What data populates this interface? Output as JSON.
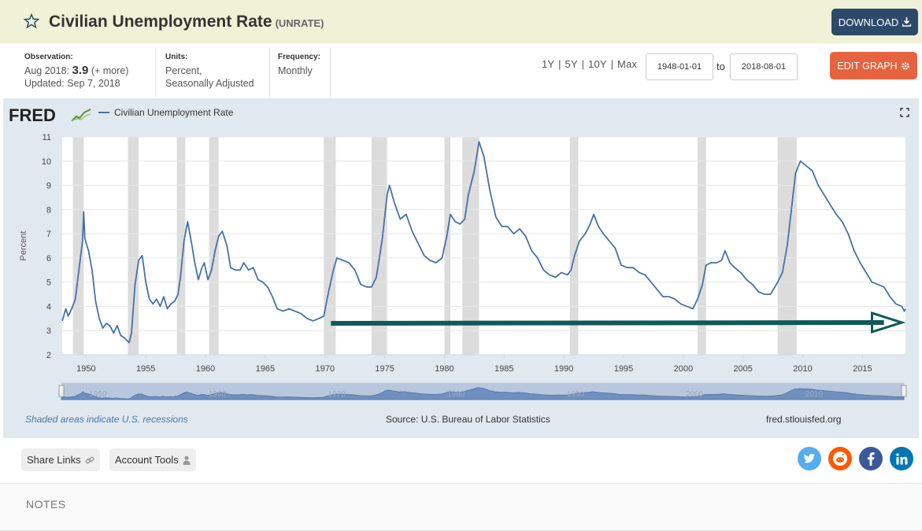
{
  "header": {
    "title": "Civilian Unemployment Rate",
    "series_id": "(UNRATE)",
    "download_label": "DOWNLOAD"
  },
  "meta": {
    "observation_label": "Observation:",
    "observation_date": "Aug 2018:",
    "observation_value": "3.9",
    "observation_more": "(+ more)",
    "updated": "Updated: Sep 7, 2018",
    "units_label": "Units:",
    "units_line1": "Percent,",
    "units_line2": "Seasonally Adjusted",
    "frequency_label": "Frequency:",
    "frequency_value": "Monthly"
  },
  "range_buttons": [
    "1Y",
    "5Y",
    "10Y",
    "Max"
  ],
  "date_range": {
    "start": "1948-01-01",
    "to_label": "to",
    "end": "2018-08-01"
  },
  "edit_graph_label": "EDIT GRAPH",
  "chart": {
    "logo_text": "FRED",
    "legend_label": "Civilian Unemployment Rate",
    "footer_note": "Shaded areas indicate U.S. recessions",
    "source": "Source: U.S. Bureau of Labor Statistics",
    "site": "fred.stlouisfed.org"
  },
  "chart_data": {
    "type": "line",
    "title": "",
    "xlabel": "",
    "ylabel": "Percent",
    "xlim": [
      1948.0,
      2018.6
    ],
    "ylim": [
      2,
      11
    ],
    "yticks": [
      2,
      3,
      4,
      5,
      6,
      7,
      8,
      9,
      10,
      11
    ],
    "xticks": [
      1950,
      1955,
      1960,
      1965,
      1970,
      1975,
      1980,
      1985,
      1990,
      1995,
      2000,
      2005,
      2010,
      2015
    ],
    "grid": true,
    "legend": "top-left",
    "line_color": "#4572a7",
    "recession_color": "#dcdcdc",
    "recessions": [
      [
        1948.9,
        1949.8
      ],
      [
        1953.5,
        1954.4
      ],
      [
        1957.6,
        1958.3
      ],
      [
        1960.3,
        1961.1
      ],
      [
        1969.9,
        1970.9
      ],
      [
        1973.9,
        1975.2
      ],
      [
        1980.0,
        1980.5
      ],
      [
        1981.5,
        1982.9
      ],
      [
        1990.5,
        1991.2
      ],
      [
        2001.2,
        2001.9
      ],
      [
        2007.9,
        2009.5
      ]
    ],
    "series": [
      {
        "name": "Civilian Unemployment Rate",
        "points": [
          [
            1948.0,
            3.4
          ],
          [
            1948.3,
            3.9
          ],
          [
            1948.5,
            3.6
          ],
          [
            1948.8,
            3.9
          ],
          [
            1949.1,
            4.3
          ],
          [
            1949.4,
            5.5
          ],
          [
            1949.7,
            6.7
          ],
          [
            1949.8,
            7.9
          ],
          [
            1949.9,
            6.8
          ],
          [
            1950.2,
            6.3
          ],
          [
            1950.5,
            5.5
          ],
          [
            1950.8,
            4.2
          ],
          [
            1951.1,
            3.5
          ],
          [
            1951.4,
            3.1
          ],
          [
            1951.7,
            3.3
          ],
          [
            1952.0,
            3.2
          ],
          [
            1952.3,
            2.9
          ],
          [
            1952.6,
            3.2
          ],
          [
            1952.9,
            2.8
          ],
          [
            1953.2,
            2.7
          ],
          [
            1953.6,
            2.5
          ],
          [
            1953.8,
            2.9
          ],
          [
            1954.1,
            4.9
          ],
          [
            1954.4,
            5.9
          ],
          [
            1954.7,
            6.1
          ],
          [
            1955.0,
            5.0
          ],
          [
            1955.3,
            4.3
          ],
          [
            1955.6,
            4.1
          ],
          [
            1955.9,
            4.3
          ],
          [
            1956.2,
            4.0
          ],
          [
            1956.5,
            4.4
          ],
          [
            1956.8,
            3.9
          ],
          [
            1957.1,
            4.1
          ],
          [
            1957.4,
            4.2
          ],
          [
            1957.7,
            4.5
          ],
          [
            1957.9,
            5.2
          ],
          [
            1958.2,
            6.7
          ],
          [
            1958.5,
            7.5
          ],
          [
            1958.8,
            6.7
          ],
          [
            1959.1,
            5.8
          ],
          [
            1959.4,
            5.1
          ],
          [
            1959.7,
            5.6
          ],
          [
            1959.9,
            5.8
          ],
          [
            1960.2,
            5.1
          ],
          [
            1960.5,
            5.5
          ],
          [
            1960.8,
            6.3
          ],
          [
            1961.1,
            6.9
          ],
          [
            1961.4,
            7.1
          ],
          [
            1961.8,
            6.5
          ],
          [
            1962.1,
            5.6
          ],
          [
            1962.5,
            5.5
          ],
          [
            1962.9,
            5.5
          ],
          [
            1963.2,
            5.8
          ],
          [
            1963.6,
            5.5
          ],
          [
            1964.0,
            5.6
          ],
          [
            1964.4,
            5.1
          ],
          [
            1964.8,
            5.0
          ],
          [
            1965.2,
            4.8
          ],
          [
            1965.6,
            4.4
          ],
          [
            1966.0,
            3.9
          ],
          [
            1966.5,
            3.8
          ],
          [
            1967.0,
            3.9
          ],
          [
            1967.5,
            3.8
          ],
          [
            1968.0,
            3.7
          ],
          [
            1968.5,
            3.5
          ],
          [
            1969.0,
            3.4
          ],
          [
            1969.5,
            3.5
          ],
          [
            1969.9,
            3.6
          ],
          [
            1970.3,
            4.6
          ],
          [
            1970.7,
            5.5
          ],
          [
            1971.0,
            6.0
          ],
          [
            1971.5,
            5.9
          ],
          [
            1972.0,
            5.8
          ],
          [
            1972.5,
            5.5
          ],
          [
            1973.0,
            4.9
          ],
          [
            1973.5,
            4.8
          ],
          [
            1973.9,
            4.8
          ],
          [
            1974.3,
            5.2
          ],
          [
            1974.8,
            6.8
          ],
          [
            1975.2,
            8.6
          ],
          [
            1975.4,
            9.0
          ],
          [
            1975.8,
            8.3
          ],
          [
            1976.3,
            7.6
          ],
          [
            1976.8,
            7.8
          ],
          [
            1977.3,
            7.1
          ],
          [
            1977.8,
            6.6
          ],
          [
            1978.3,
            6.1
          ],
          [
            1978.8,
            5.9
          ],
          [
            1979.3,
            5.8
          ],
          [
            1979.8,
            6.0
          ],
          [
            1980.2,
            6.9
          ],
          [
            1980.5,
            7.8
          ],
          [
            1980.9,
            7.5
          ],
          [
            1981.3,
            7.4
          ],
          [
            1981.7,
            7.6
          ],
          [
            1982.0,
            8.6
          ],
          [
            1982.5,
            9.6
          ],
          [
            1982.9,
            10.8
          ],
          [
            1983.3,
            10.2
          ],
          [
            1983.8,
            8.8
          ],
          [
            1984.3,
            7.7
          ],
          [
            1984.8,
            7.3
          ],
          [
            1985.3,
            7.3
          ],
          [
            1985.8,
            7.0
          ],
          [
            1986.3,
            7.2
          ],
          [
            1986.8,
            6.9
          ],
          [
            1987.3,
            6.3
          ],
          [
            1987.8,
            6.0
          ],
          [
            1988.3,
            5.5
          ],
          [
            1988.8,
            5.3
          ],
          [
            1989.3,
            5.2
          ],
          [
            1989.8,
            5.4
          ],
          [
            1990.3,
            5.3
          ],
          [
            1990.6,
            5.5
          ],
          [
            1990.9,
            6.1
          ],
          [
            1991.3,
            6.7
          ],
          [
            1991.8,
            7.0
          ],
          [
            1992.2,
            7.4
          ],
          [
            1992.5,
            7.8
          ],
          [
            1992.9,
            7.3
          ],
          [
            1993.3,
            7.0
          ],
          [
            1993.8,
            6.7
          ],
          [
            1994.3,
            6.4
          ],
          [
            1994.8,
            5.7
          ],
          [
            1995.3,
            5.6
          ],
          [
            1995.8,
            5.6
          ],
          [
            1996.3,
            5.4
          ],
          [
            1996.8,
            5.3
          ],
          [
            1997.3,
            5.0
          ],
          [
            1997.8,
            4.7
          ],
          [
            1998.3,
            4.4
          ],
          [
            1998.8,
            4.4
          ],
          [
            1999.3,
            4.3
          ],
          [
            1999.8,
            4.1
          ],
          [
            2000.3,
            4.0
          ],
          [
            2000.8,
            3.9
          ],
          [
            2001.2,
            4.3
          ],
          [
            2001.6,
            4.9
          ],
          [
            2001.9,
            5.7
          ],
          [
            2002.3,
            5.8
          ],
          [
            2002.8,
            5.8
          ],
          [
            2003.2,
            5.9
          ],
          [
            2003.5,
            6.3
          ],
          [
            2003.9,
            5.8
          ],
          [
            2004.3,
            5.6
          ],
          [
            2004.8,
            5.4
          ],
          [
            2005.3,
            5.1
          ],
          [
            2005.8,
            4.9
          ],
          [
            2006.3,
            4.6
          ],
          [
            2006.8,
            4.5
          ],
          [
            2007.3,
            4.5
          ],
          [
            2007.9,
            5.0
          ],
          [
            2008.3,
            5.4
          ],
          [
            2008.7,
            6.5
          ],
          [
            2009.0,
            7.8
          ],
          [
            2009.4,
            9.5
          ],
          [
            2009.8,
            10.0
          ],
          [
            2010.3,
            9.8
          ],
          [
            2010.8,
            9.6
          ],
          [
            2011.3,
            9.0
          ],
          [
            2011.8,
            8.6
          ],
          [
            2012.3,
            8.2
          ],
          [
            2012.8,
            7.8
          ],
          [
            2013.3,
            7.5
          ],
          [
            2013.8,
            7.0
          ],
          [
            2014.3,
            6.3
          ],
          [
            2014.8,
            5.8
          ],
          [
            2015.3,
            5.4
          ],
          [
            2015.8,
            5.0
          ],
          [
            2016.3,
            4.9
          ],
          [
            2016.8,
            4.8
          ],
          [
            2017.3,
            4.4
          ],
          [
            2017.8,
            4.1
          ],
          [
            2018.3,
            4.0
          ],
          [
            2018.5,
            3.8
          ],
          [
            2018.6,
            3.9
          ]
        ]
      }
    ],
    "navigator_labels": [
      "1950",
      "1960",
      "1970",
      "1980",
      "1990",
      "2000",
      "2010"
    ]
  },
  "share": {
    "share_links_label": "Share Links",
    "account_tools_label": "Account Tools"
  },
  "notes": {
    "title": "NOTES"
  }
}
